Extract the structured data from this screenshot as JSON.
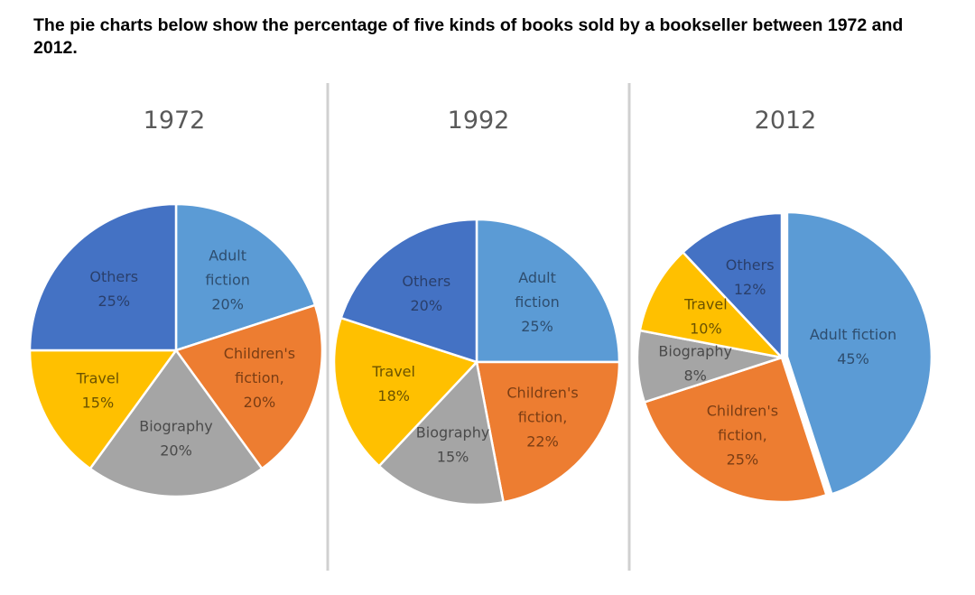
{
  "heading": "The pie charts below show the percentage of five kinds of books sold by a bookseller between 1972 and 2012.",
  "colors": {
    "Adult fiction": "#5b9bd5",
    "Children's fiction": "#ed7d31",
    "Biography": "#a5a5a5",
    "Travel": "#ffc000",
    "Others": "#4472c4"
  },
  "chart_data": [
    {
      "type": "pie",
      "title": "1972",
      "slices": [
        {
          "name": "Adult fiction",
          "value": 20,
          "label_lines": [
            "Adult",
            "fiction",
            "20%"
          ]
        },
        {
          "name": "Children's fiction",
          "value": 20,
          "label_lines": [
            "Children's",
            "fiction,",
            "20%"
          ]
        },
        {
          "name": "Biography",
          "value": 20,
          "label_lines": [
            "Biography",
            "20%"
          ]
        },
        {
          "name": "Travel",
          "value": 15,
          "label_lines": [
            "Travel",
            "15%"
          ]
        },
        {
          "name": "Others",
          "value": 25,
          "label_lines": [
            "Others",
            "25%"
          ]
        }
      ]
    },
    {
      "type": "pie",
      "title": "1992",
      "slices": [
        {
          "name": "Adult fiction",
          "value": 25,
          "label_lines": [
            "Adult",
            "fiction",
            "25%"
          ]
        },
        {
          "name": "Children's fiction",
          "value": 22,
          "label_lines": [
            "Children's",
            "fiction,",
            "22%"
          ]
        },
        {
          "name": "Biography",
          "value": 15,
          "label_lines": [
            "Biography",
            "15%"
          ]
        },
        {
          "name": "Travel",
          "value": 18,
          "label_lines": [
            "Travel",
            "18%"
          ]
        },
        {
          "name": "Others",
          "value": 20,
          "label_lines": [
            "Others",
            "20%"
          ]
        }
      ]
    },
    {
      "type": "pie",
      "title": "2012",
      "slices": [
        {
          "name": "Adult fiction",
          "value": 45,
          "label_lines": [
            "Adult fiction",
            "45%"
          ]
        },
        {
          "name": "Children's fiction",
          "value": 25,
          "label_lines": [
            "Children's",
            "fiction,",
            "25%"
          ]
        },
        {
          "name": "Biography",
          "value": 8,
          "label_lines": [
            "Biography",
            "8%"
          ]
        },
        {
          "name": "Travel",
          "value": 10,
          "label_lines": [
            "Travel",
            "10%"
          ]
        },
        {
          "name": "Others",
          "value": 12,
          "label_lines": [
            "Others",
            "12%"
          ]
        }
      ]
    }
  ]
}
